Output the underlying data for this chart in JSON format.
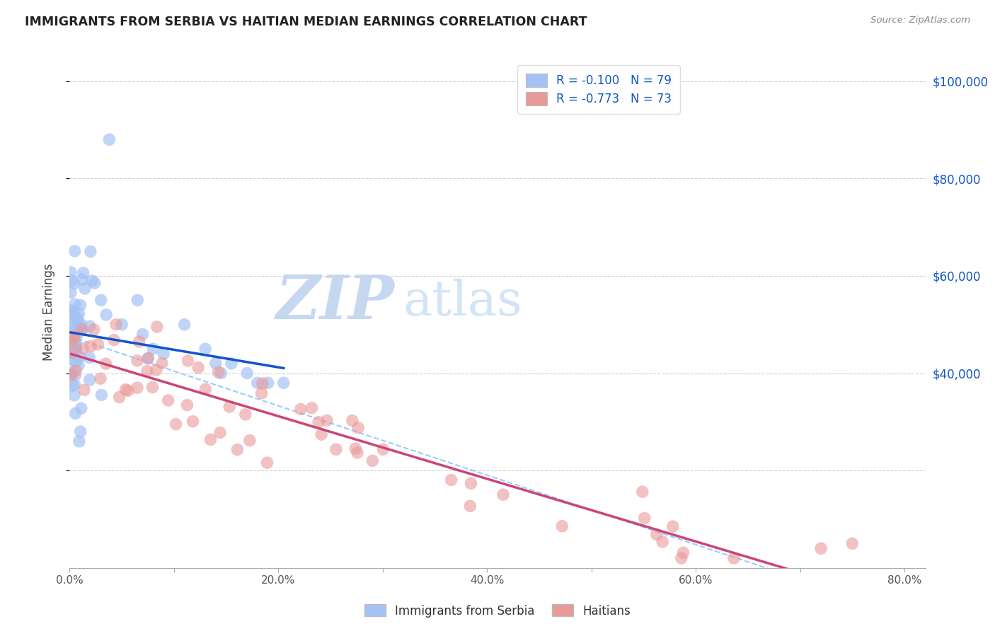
{
  "title": "IMMIGRANTS FROM SERBIA VS HAITIAN MEDIAN EARNINGS CORRELATION CHART",
  "source": "Source: ZipAtlas.com",
  "ylabel": "Median Earnings",
  "serbia_R": -0.1,
  "serbia_N": 79,
  "haiti_R": -0.773,
  "haiti_N": 73,
  "serbia_color": "#a4c2f4",
  "haiti_color": "#ea9999",
  "serbia_line_color": "#1155cc",
  "haiti_line_color": "#cc4477",
  "trend_line_color": "#99ccff",
  "xlim": [
    0.0,
    0.82
  ],
  "ylim": [
    0,
    105000
  ],
  "background_color": "#ffffff",
  "grid_color": "#d0d0d0",
  "title_color": "#222222",
  "right_ytick_color": "#1155cc",
  "watermark_zip_color": "#c8d8f0",
  "watermark_atlas_color": "#d4e4f8"
}
